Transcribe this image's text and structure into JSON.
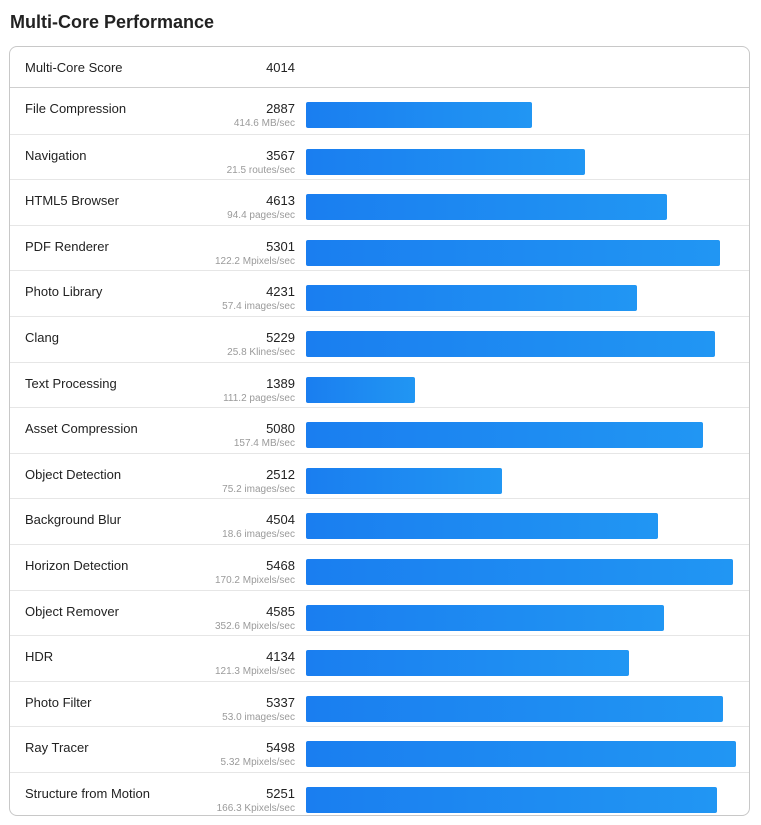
{
  "page": {
    "title": "Multi-Core Performance"
  },
  "summary": {
    "label": "Multi-Core Score",
    "score": "4014"
  },
  "colors": {
    "bar_start": "#1a7ef0",
    "bar_end": "#2196f3"
  },
  "chart_data": {
    "type": "bar",
    "orientation": "horizontal",
    "title": "Multi-Core Performance",
    "xlim": [
      0,
      5500
    ],
    "categories": [
      "File Compression",
      "Navigation",
      "HTML5 Browser",
      "PDF Renderer",
      "Photo Library",
      "Clang",
      "Text Processing",
      "Asset Compression",
      "Object Detection",
      "Background Blur",
      "Horizon Detection",
      "Object Remover",
      "HDR",
      "Photo Filter",
      "Ray Tracer",
      "Structure from Motion"
    ],
    "values": [
      2887,
      3567,
      4613,
      5301,
      4231,
      5229,
      1389,
      5080,
      2512,
      4504,
      5468,
      4585,
      4134,
      5337,
      5498,
      5251
    ],
    "rates": [
      "414.6 MB/sec",
      "21.5 routes/sec",
      "94.4 pages/sec",
      "122.2 Mpixels/sec",
      "57.4 images/sec",
      "25.8 Klines/sec",
      "111.2 pages/sec",
      "157.4 MB/sec",
      "75.2 images/sec",
      "18.6 images/sec",
      "170.2 Mpixels/sec",
      "352.6 Mpixels/sec",
      "121.3 Mpixels/sec",
      "53.0 images/sec",
      "5.32 Mpixels/sec",
      "166.3 Kpixels/sec"
    ]
  }
}
